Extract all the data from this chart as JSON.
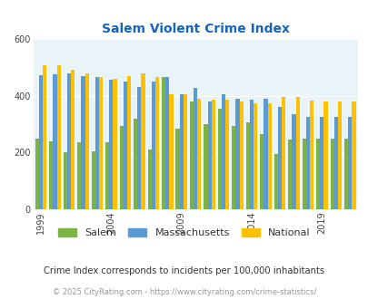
{
  "title": "Salem Violent Crime Index",
  "years": [
    1999,
    2000,
    2001,
    2002,
    2003,
    2004,
    2005,
    2006,
    2007,
    2008,
    2009,
    2010,
    2011,
    2012,
    2013,
    2014,
    2015,
    2016,
    2017,
    2018,
    2019,
    2020,
    2021
  ],
  "salem": [
    248,
    238,
    200,
    235,
    205,
    235,
    295,
    320,
    210,
    465,
    285,
    378,
    300,
    355,
    295,
    305,
    265,
    195,
    247,
    248,
    248,
    248,
    248
  ],
  "mass": [
    472,
    475,
    480,
    470,
    465,
    455,
    450,
    430,
    450,
    465,
    405,
    428,
    378,
    405,
    390,
    385,
    390,
    360,
    335,
    325,
    325,
    325,
    325
  ],
  "national": [
    508,
    508,
    490,
    480,
    465,
    460,
    470,
    480,
    465,
    405,
    405,
    388,
    387,
    387,
    380,
    372,
    373,
    395,
    395,
    383,
    380,
    380,
    380
  ],
  "salem_color": "#7cb342",
  "ma_color": "#5b9bd5",
  "nat_color": "#ffc000",
  "bg_color": "#e8f4f8",
  "title_color": "#1565c0",
  "ylim": [
    0,
    600
  ],
  "yticks": [
    0,
    200,
    400,
    600
  ],
  "xlabel_ticks": [
    1999,
    2004,
    2009,
    2014,
    2019
  ],
  "subtitle": "Crime Index corresponds to incidents per 100,000 inhabitants",
  "footer": "© 2025 CityRating.com - https://www.cityrating.com/crime-statistics/",
  "legend_labels": [
    "Salem",
    "Massachusetts",
    "National"
  ]
}
